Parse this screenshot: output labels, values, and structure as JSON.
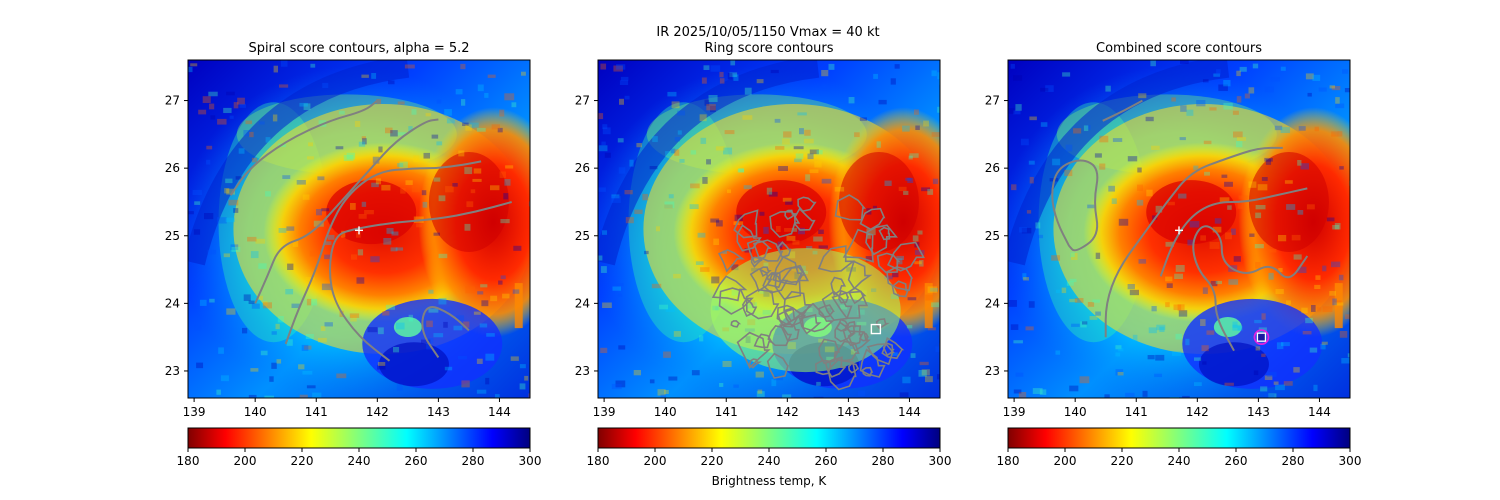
{
  "suptitle": "IR  2025/10/05/1150    Vmax = 40 kt",
  "colorbar_label": "Brightness temp, K",
  "colors": {
    "contour": "#808080",
    "center_marker": "#ffffff",
    "combined_marker_ring": "#e020e0",
    "combined_marker_fill": "#1a1aa0"
  },
  "chart_data": [
    {
      "type": "heatmap",
      "title": "Spiral score contours, alpha =  5.2",
      "colormap": "jet",
      "xlim": [
        138.9,
        144.5
      ],
      "ylim": [
        22.6,
        27.6
      ],
      "xticks": [
        "139",
        "140",
        "141",
        "142",
        "143",
        "144"
      ],
      "yticks": [
        "23",
        "24",
        "25",
        "26",
        "27"
      ],
      "colorbar": {
        "range": [
          180,
          300
        ],
        "ticks": [
          "180",
          "200",
          "220",
          "240",
          "260",
          "280",
          "300"
        ],
        "reversed": true
      },
      "center_marker": {
        "x": 141.7,
        "y": 25.08,
        "symbol": "+"
      },
      "contours": [
        [
          [
            139.6,
            25.6
          ],
          [
            139.9,
            26.0
          ],
          [
            140.5,
            26.4
          ],
          [
            141.2,
            26.7
          ],
          [
            141.8,
            26.85
          ],
          [
            142.0,
            27.0
          ]
        ],
        [
          [
            140.0,
            24.0
          ],
          [
            140.2,
            24.4
          ],
          [
            140.4,
            24.85
          ],
          [
            140.9,
            25.0
          ],
          [
            141.4,
            25.5
          ],
          [
            141.9,
            26.0
          ],
          [
            142.3,
            26.4
          ],
          [
            142.8,
            26.7
          ],
          [
            143.0,
            26.72
          ]
        ],
        [
          [
            140.5,
            23.4
          ],
          [
            140.7,
            23.9
          ],
          [
            141.0,
            24.5
          ],
          [
            141.2,
            25.1
          ],
          [
            141.5,
            25.6
          ],
          [
            142.0,
            25.95
          ],
          [
            142.6,
            26.0
          ],
          [
            143.0,
            26.0
          ],
          [
            143.4,
            26.05
          ],
          [
            143.7,
            26.1
          ]
        ],
        [
          [
            142.2,
            23.15
          ],
          [
            141.7,
            23.5
          ],
          [
            141.3,
            24.0
          ],
          [
            141.2,
            24.5
          ],
          [
            141.3,
            25.0
          ],
          [
            141.6,
            25.1
          ],
          [
            142.3,
            25.2
          ],
          [
            143.0,
            25.25
          ],
          [
            143.6,
            25.35
          ],
          [
            144.2,
            25.5
          ]
        ],
        [
          [
            143.0,
            23.2
          ],
          [
            142.7,
            23.6
          ],
          [
            142.8,
            24.0
          ],
          [
            143.2,
            23.85
          ],
          [
            143.5,
            23.6
          ]
        ]
      ]
    },
    {
      "type": "heatmap",
      "title": "Ring score contours",
      "colormap": "jet",
      "xlim": [
        138.9,
        144.5
      ],
      "ylim": [
        22.6,
        27.6
      ],
      "xticks": [
        "139",
        "140",
        "141",
        "142",
        "143",
        "144"
      ],
      "yticks": [
        "23",
        "24",
        "25",
        "26",
        "27"
      ],
      "colorbar": {
        "range": [
          180,
          300
        ],
        "ticks": [
          "180",
          "200",
          "220",
          "240",
          "260",
          "280",
          "300"
        ],
        "reversed": true
      },
      "box_marker": {
        "x": 143.45,
        "y": 23.62,
        "symbol": "square"
      },
      "contour_region": {
        "x_range": [
          141.0,
          144.0
        ],
        "y_range": [
          23.0,
          26.0
        ]
      }
    },
    {
      "type": "heatmap",
      "title": "Combined score contours",
      "colormap": "jet",
      "xlim": [
        138.9,
        144.5
      ],
      "ylim": [
        22.6,
        27.6
      ],
      "xticks": [
        "139",
        "140",
        "141",
        "142",
        "143",
        "144"
      ],
      "yticks": [
        "23",
        "24",
        "25",
        "26",
        "27"
      ],
      "colorbar": {
        "range": [
          180,
          300
        ],
        "ticks": [
          "180",
          "200",
          "220",
          "240",
          "260",
          "280",
          "300"
        ],
        "reversed": true
      },
      "center_marker": {
        "x": 141.7,
        "y": 25.08,
        "symbol": "+"
      },
      "best_marker": {
        "x": 143.05,
        "y": 23.5,
        "symbol": "circle-square"
      },
      "contours": [
        [
          [
            140.45,
            26.7
          ],
          [
            140.8,
            26.85
          ],
          [
            141.1,
            27.0
          ]
        ],
        [
          [
            139.9,
            24.85
          ],
          [
            139.7,
            25.2
          ],
          [
            139.6,
            25.6
          ],
          [
            139.7,
            26.0
          ],
          [
            140.1,
            26.15
          ],
          [
            140.4,
            26.0
          ],
          [
            140.3,
            25.5
          ],
          [
            140.4,
            25.0
          ],
          [
            140.0,
            24.75
          ],
          [
            139.9,
            24.85
          ]
        ],
        [
          [
            140.5,
            23.5
          ],
          [
            140.5,
            24.0
          ],
          [
            140.7,
            24.5
          ],
          [
            141.1,
            25.0
          ],
          [
            141.5,
            25.5
          ],
          [
            141.9,
            25.95
          ],
          [
            142.5,
            26.15
          ],
          [
            143.0,
            26.3
          ],
          [
            143.4,
            26.3
          ]
        ],
        [
          [
            141.4,
            24.4
          ],
          [
            141.6,
            24.9
          ],
          [
            141.9,
            25.3
          ],
          [
            142.3,
            25.5
          ],
          [
            142.8,
            25.5
          ],
          [
            143.3,
            25.6
          ],
          [
            143.8,
            25.7
          ]
        ],
        [
          [
            142.6,
            23.3
          ],
          [
            142.3,
            23.8
          ],
          [
            142.3,
            24.2
          ],
          [
            142.0,
            24.5
          ],
          [
            141.9,
            24.9
          ],
          [
            142.1,
            25.2
          ],
          [
            142.4,
            25.0
          ],
          [
            142.4,
            24.6
          ],
          [
            142.8,
            24.4
          ],
          [
            143.2,
            24.6
          ],
          [
            143.5,
            24.3
          ],
          [
            143.8,
            24.7
          ]
        ]
      ]
    }
  ]
}
